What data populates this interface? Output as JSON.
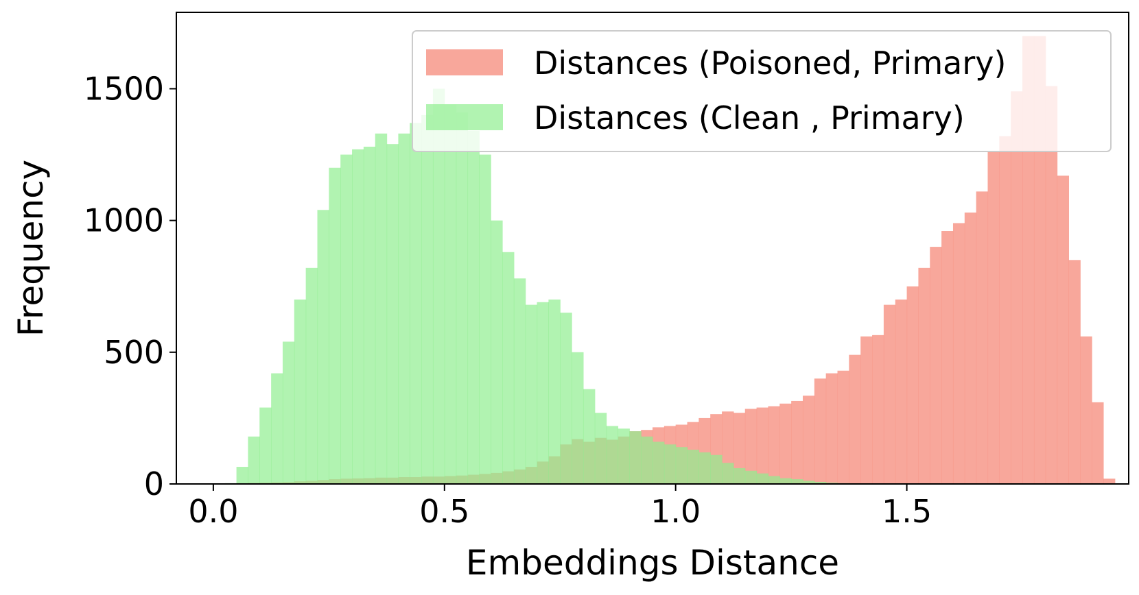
{
  "chart_data": {
    "type": "bar",
    "subtype": "histogram",
    "xlabel": "Embeddings Distance",
    "ylabel": "Frequency",
    "xlim": [
      -0.08,
      1.98
    ],
    "ylim": [
      0,
      1790
    ],
    "xticks": [
      0.0,
      0.5,
      1.0,
      1.5
    ],
    "xtick_labels": [
      "0.0",
      "0.5",
      "1.0",
      "1.5"
    ],
    "yticks": [
      0,
      500,
      1000,
      1500
    ],
    "ytick_labels": [
      "0",
      "500",
      "1000",
      "1500"
    ],
    "grid": false,
    "legend_position": "top-right",
    "bin_width": 0.025,
    "series": [
      {
        "name": "Distances (Poisoned, Primary)",
        "color": "#f7988a",
        "opacity": 0.85,
        "bin_start": 0.0,
        "values": [
          2,
          2,
          3,
          4,
          5,
          6,
          7,
          10,
          12,
          15,
          18,
          20,
          21,
          22,
          24,
          24,
          26,
          26,
          28,
          28,
          30,
          32,
          35,
          38,
          42,
          48,
          55,
          65,
          85,
          105,
          150,
          170,
          160,
          175,
          168,
          180,
          200,
          205,
          215,
          220,
          225,
          235,
          250,
          265,
          275,
          270,
          285,
          290,
          295,
          305,
          315,
          335,
          400,
          420,
          430,
          490,
          560,
          565,
          680,
          700,
          750,
          820,
          900,
          960,
          990,
          1030,
          1110,
          1260,
          1320,
          1490,
          1700,
          1700,
          1510,
          1170,
          850,
          560,
          310,
          20
        ]
      },
      {
        "name": "Distances (Clean , Primary)",
        "color": "#90ee90",
        "opacity": 0.7,
        "bin_start": 0.0,
        "values": [
          2,
          3,
          65,
          180,
          290,
          420,
          540,
          700,
          820,
          1040,
          1200,
          1250,
          1270,
          1280,
          1330,
          1290,
          1330,
          1370,
          1400,
          1500,
          1440,
          1410,
          1340,
          1250,
          1000,
          880,
          780,
          680,
          690,
          700,
          650,
          500,
          360,
          270,
          220,
          210,
          200,
          180,
          160,
          150,
          140,
          130,
          120,
          110,
          80,
          60,
          50,
          40,
          30,
          22,
          18,
          12,
          8,
          5,
          3,
          2,
          1,
          1,
          0,
          0,
          0,
          0,
          0,
          0,
          0,
          0,
          0,
          0,
          0,
          0,
          0,
          0,
          0,
          0,
          0,
          0,
          0,
          0
        ]
      }
    ]
  }
}
